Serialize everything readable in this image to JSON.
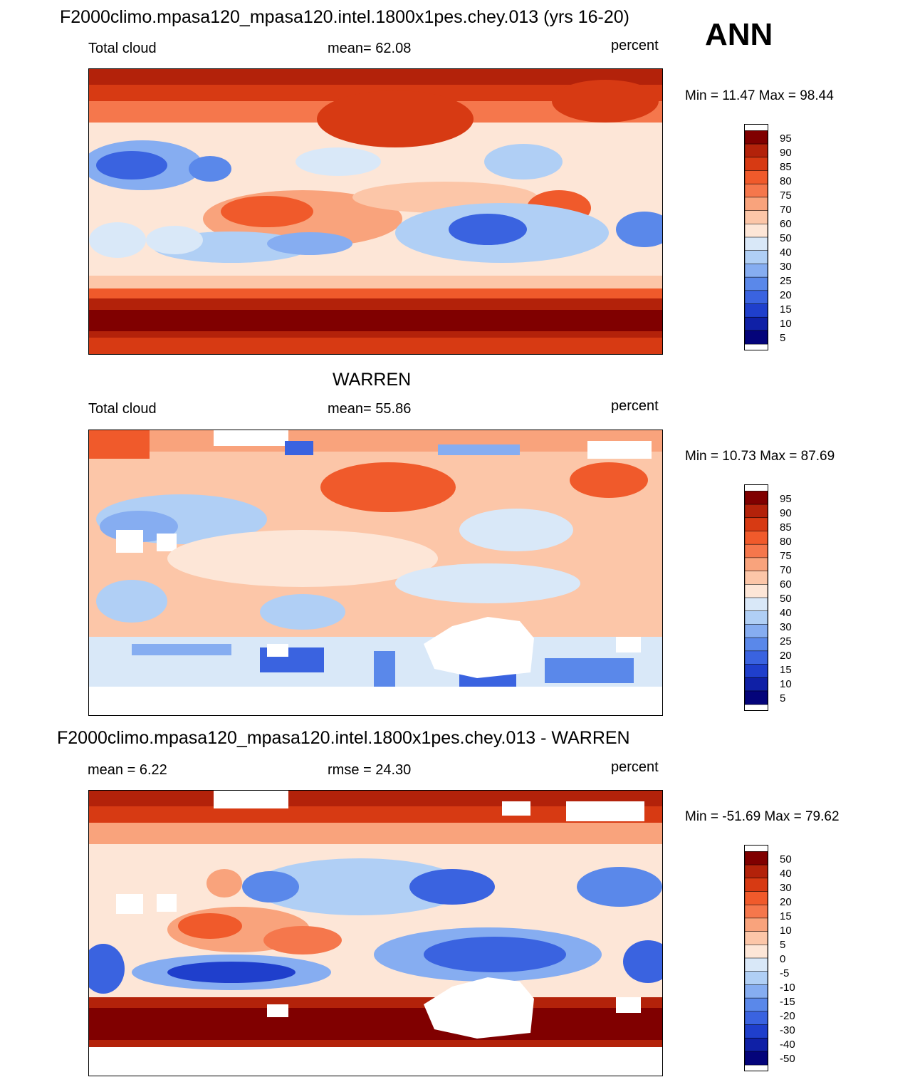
{
  "header": {
    "season": "ANN"
  },
  "panels": [
    {
      "id": "model",
      "title": "F2000climo.mpasa120_mpasa120.intel.1800x1pes.chey.013 (yrs 16-20)",
      "left_label": "Total cloud",
      "center_label": "mean=  62.08",
      "right_label": "percent",
      "minmax": "Min =  11.47 Max =  98.44",
      "colorbar_labels": [
        "95",
        "90",
        "85",
        "80",
        "75",
        "70",
        "60",
        "50",
        "40",
        "30",
        "25",
        "20",
        "15",
        "10",
        "5"
      ]
    },
    {
      "id": "obs",
      "title": "WARREN",
      "left_label": "Total cloud",
      "center_label": "mean=  55.86",
      "right_label": "percent",
      "minmax": "Min =  10.73 Max =  87.69",
      "colorbar_labels": [
        "95",
        "90",
        "85",
        "80",
        "75",
        "70",
        "60",
        "50",
        "40",
        "30",
        "25",
        "20",
        "15",
        "10",
        "5"
      ]
    },
    {
      "id": "diff",
      "title": "F2000climo.mpasa120_mpasa120.intel.1800x1pes.chey.013 - WARREN",
      "left_label": "mean =   6.22",
      "center_label": "rmse =  24.30",
      "right_label": "percent",
      "minmax": "Min = -51.69 Max =  79.62",
      "colorbar_labels": [
        "50",
        "40",
        "30",
        "20",
        "15",
        "10",
        "5",
        "0",
        "-5",
        "-10",
        "-15",
        "-20",
        "-30",
        "-40",
        "-50"
      ]
    }
  ],
  "colors": {
    "palette": [
      "#800000",
      "#b3220a",
      "#d73a13",
      "#f05a2b",
      "#f5774c",
      "#f9a37c",
      "#fcc6a8",
      "#fde6d7",
      "#d9e8f8",
      "#b0cff5",
      "#86adf1",
      "#5a88ea",
      "#3a63e0",
      "#1f3fcc",
      "#0f20a6",
      "#04047a"
    ]
  },
  "chart_data": [
    {
      "type": "heatmap",
      "title": "F2000climo.mpasa120_mpasa120.intel.1800x1pes.chey.013 (yrs 16-20)",
      "variable": "Total cloud",
      "units": "percent",
      "mean": 62.08,
      "min": 11.47,
      "max": 98.44,
      "levels": [
        5,
        10,
        15,
        20,
        25,
        30,
        40,
        50,
        60,
        70,
        75,
        80,
        85,
        90,
        95
      ]
    },
    {
      "type": "heatmap",
      "title": "WARREN",
      "variable": "Total cloud",
      "units": "percent",
      "mean": 55.86,
      "min": 10.73,
      "max": 87.69,
      "levels": [
        5,
        10,
        15,
        20,
        25,
        30,
        40,
        50,
        60,
        70,
        75,
        80,
        85,
        90,
        95
      ]
    },
    {
      "type": "heatmap",
      "title": "F2000climo.mpasa120_mpasa120.intel.1800x1pes.chey.013 - WARREN",
      "units": "percent",
      "mean": 6.22,
      "rmse": 24.3,
      "min": -51.69,
      "max": 79.62,
      "levels": [
        -50,
        -40,
        -30,
        -20,
        -15,
        -10,
        -5,
        0,
        5,
        10,
        15,
        20,
        30,
        40,
        50
      ]
    }
  ]
}
